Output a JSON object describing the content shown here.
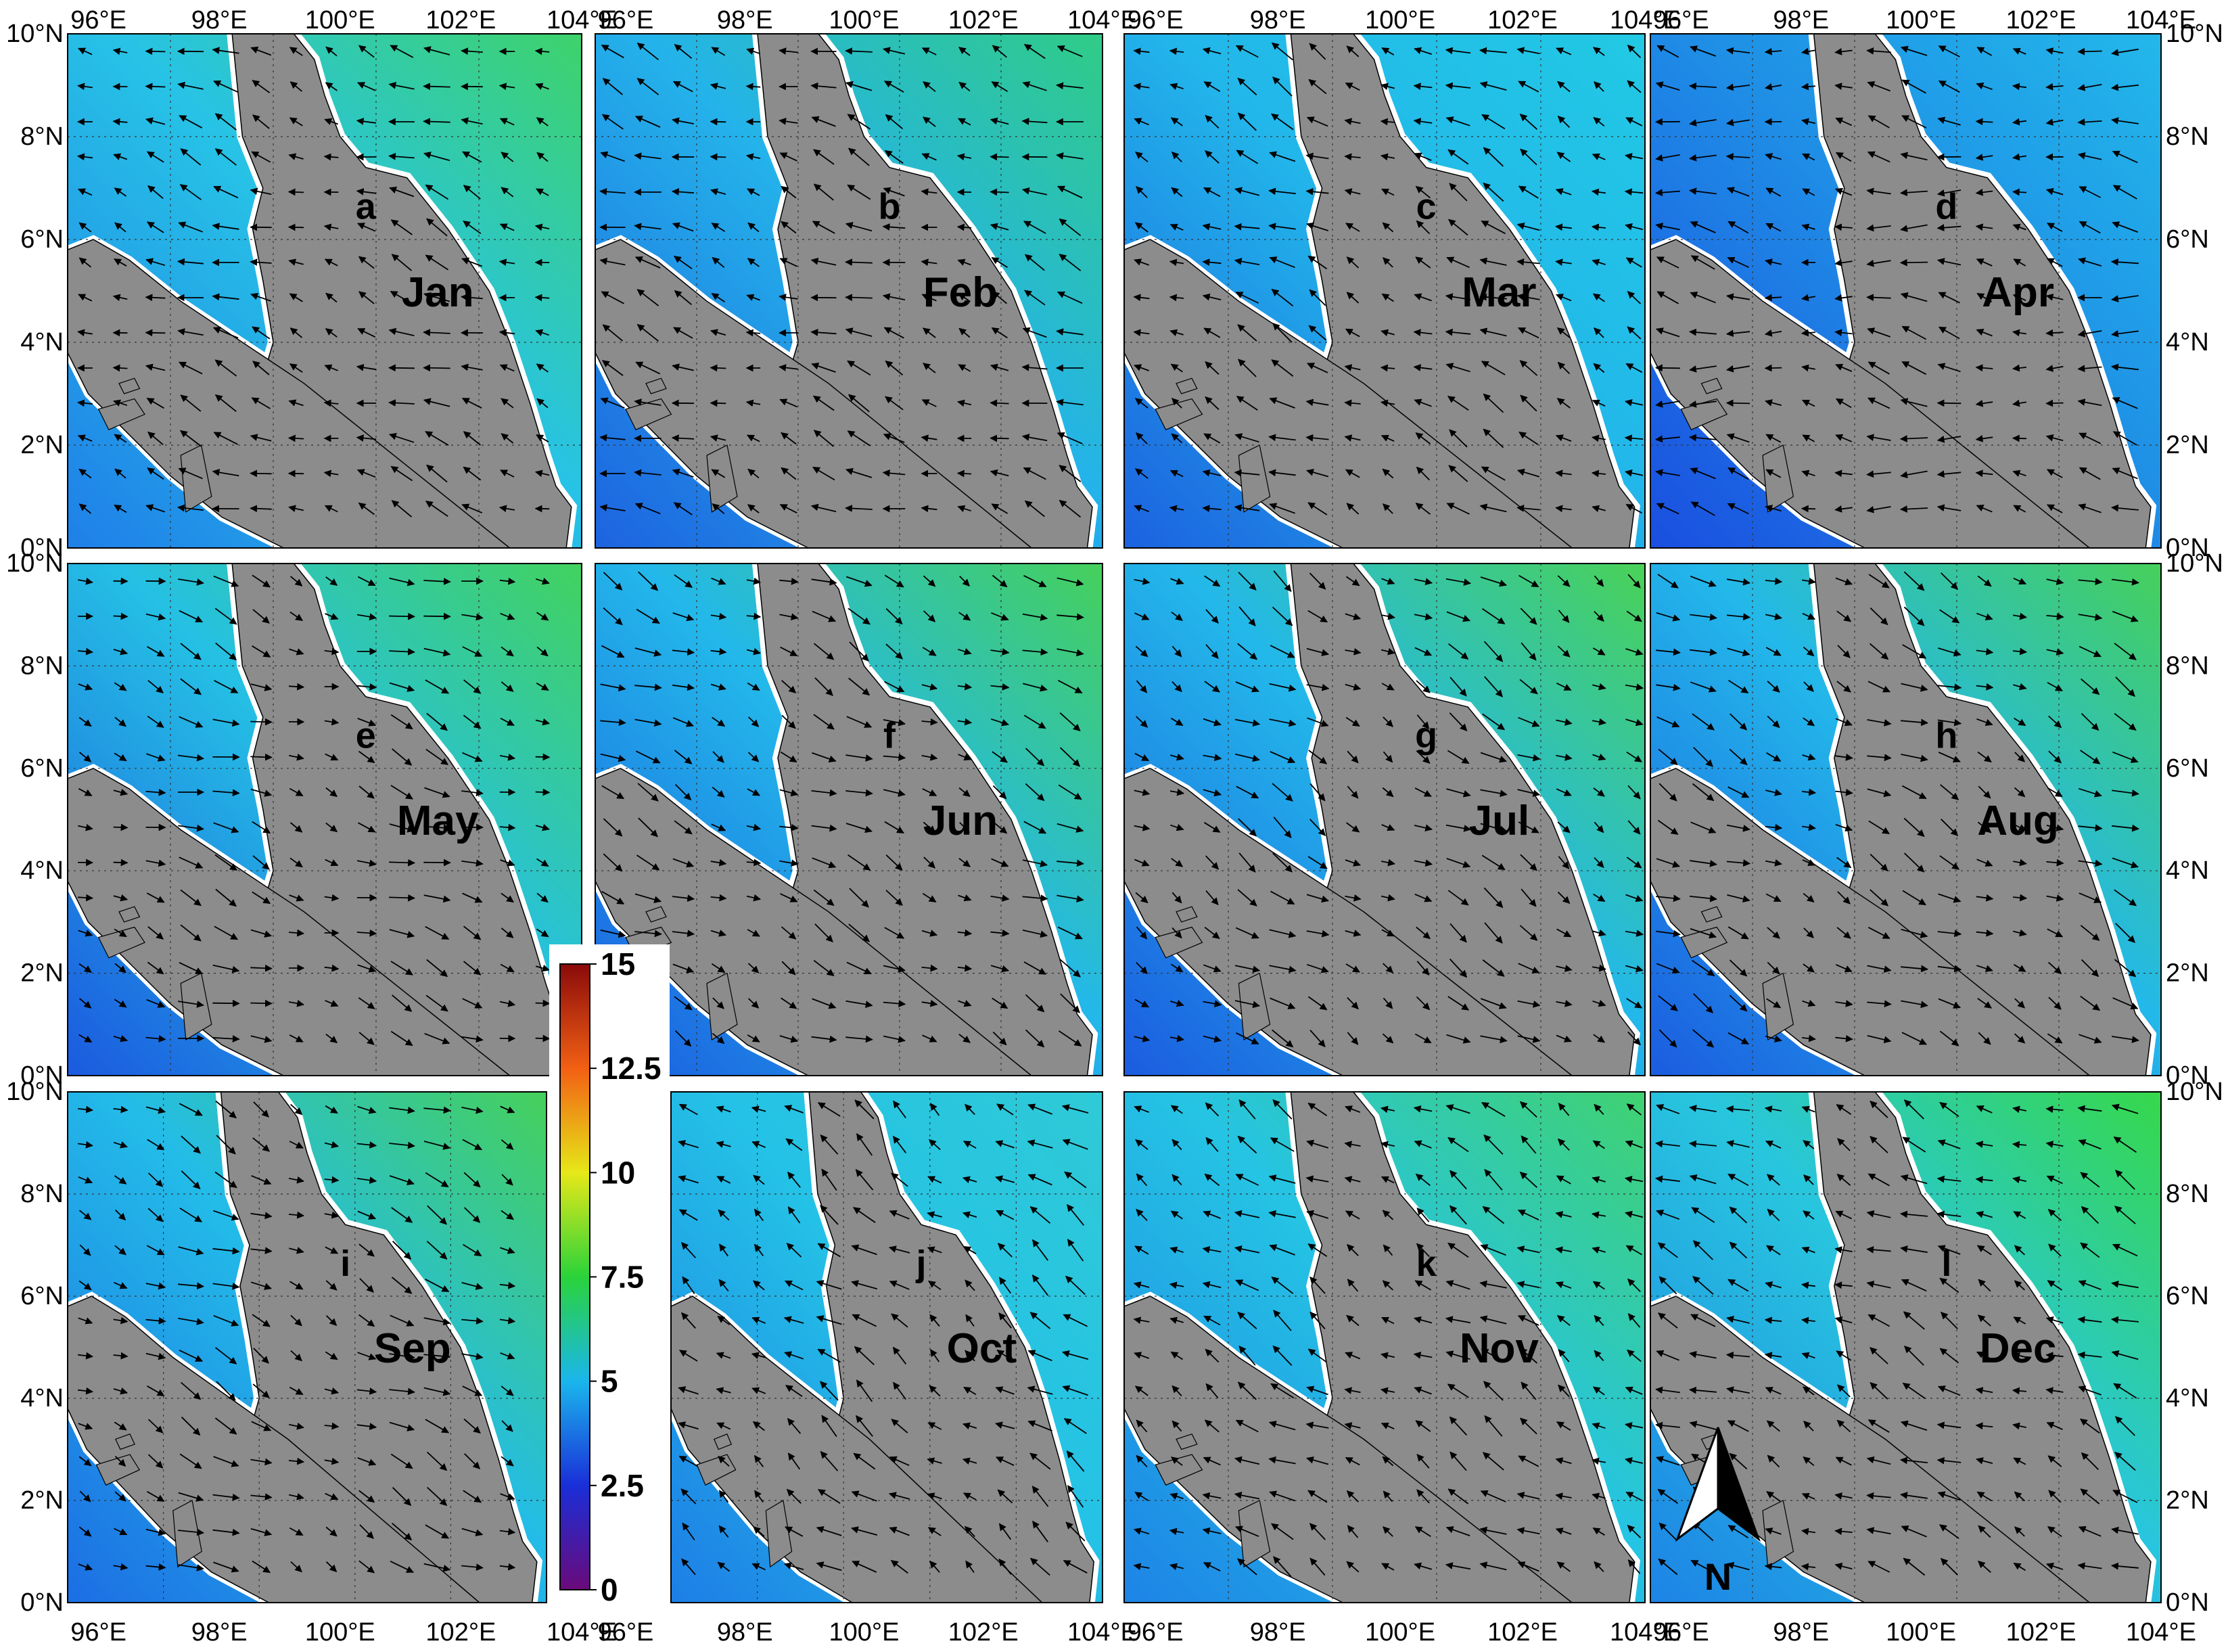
{
  "figure": {
    "panels": [
      {
        "letter": "a",
        "month": "Jan"
      },
      {
        "letter": "b",
        "month": "Feb"
      },
      {
        "letter": "c",
        "month": "Mar"
      },
      {
        "letter": "d",
        "month": "Apr"
      },
      {
        "letter": "e",
        "month": "May"
      },
      {
        "letter": "f",
        "month": "Jun"
      },
      {
        "letter": "g",
        "month": "Jul"
      },
      {
        "letter": "h",
        "month": "Aug"
      },
      {
        "letter": "i",
        "month": "Sep"
      },
      {
        "letter": "j",
        "month": "Oct"
      },
      {
        "letter": "k",
        "month": "Nov"
      },
      {
        "letter": "l",
        "month": "Dec"
      }
    ],
    "lon_labels": [
      "96°E",
      "98°E",
      "100°E",
      "102°E",
      "104°E"
    ],
    "lat_labels": [
      "0°N",
      "2°N",
      "4°N",
      "6°N",
      "8°N",
      "10°N"
    ],
    "colorbar": {
      "tick_labels": [
        "0",
        "2.5",
        "5",
        "7.5",
        "10",
        "12.5",
        "15"
      ],
      "range": [
        0,
        15
      ],
      "colors": [
        "#6a0a7a",
        "#1a2ed8",
        "#1ab6ec",
        "#2ad33a",
        "#e6e818",
        "#f26014",
        "#8a0a0a"
      ]
    },
    "north_arrow_label": "N",
    "colors": {
      "land": "#8c8c8c",
      "shore_mask": "#ffffff",
      "arrow": "#000000",
      "grid": "#333333",
      "sea_low": "#1b5fe0",
      "sea_mid": "#22b9ea",
      "sea_high": "#3bd46a"
    }
  }
}
